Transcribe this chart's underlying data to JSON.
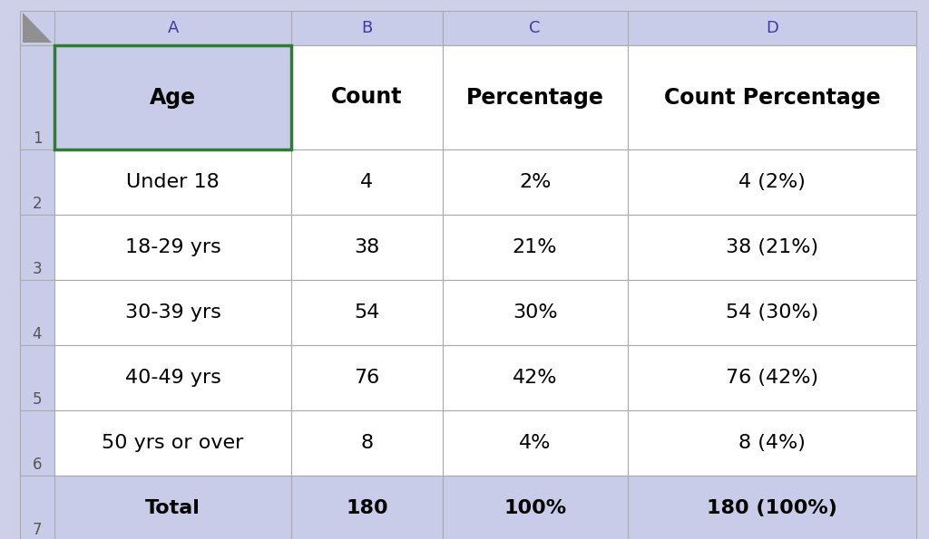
{
  "col_headers": [
    "A",
    "B",
    "C",
    "D"
  ],
  "row_numbers": [
    "1",
    "2",
    "3",
    "4",
    "5",
    "6",
    "7"
  ],
  "header_row": [
    "Age",
    "Count",
    "Percentage",
    "Count Percentage"
  ],
  "rows": [
    [
      "Under 18",
      "4",
      "2%",
      "4 (2%)"
    ],
    [
      "18-29 yrs",
      "38",
      "21%",
      "38 (21%)"
    ],
    [
      "30-39 yrs",
      "54",
      "30%",
      "54 (30%)"
    ],
    [
      "40-49 yrs",
      "76",
      "42%",
      "76 (42%)"
    ],
    [
      "50 yrs or over",
      "8",
      "4%",
      "8 (4%)"
    ],
    [
      "Total",
      "180",
      "100%",
      "180 (100%)"
    ]
  ],
  "bg_header_color": "#c8cce8",
  "bg_white": "#ffffff",
  "grid_color": "#aaaaaa",
  "row_num_color": "#555555",
  "col_letter_color": "#3a3aaa",
  "green_border_color": "#2e7d32",
  "figure_bg": "#cdd0e8",
  "text_color": "#000000",
  "font_size_header": 17,
  "font_size_data": 16,
  "font_size_col_letters": 13,
  "font_size_row_nums": 12
}
